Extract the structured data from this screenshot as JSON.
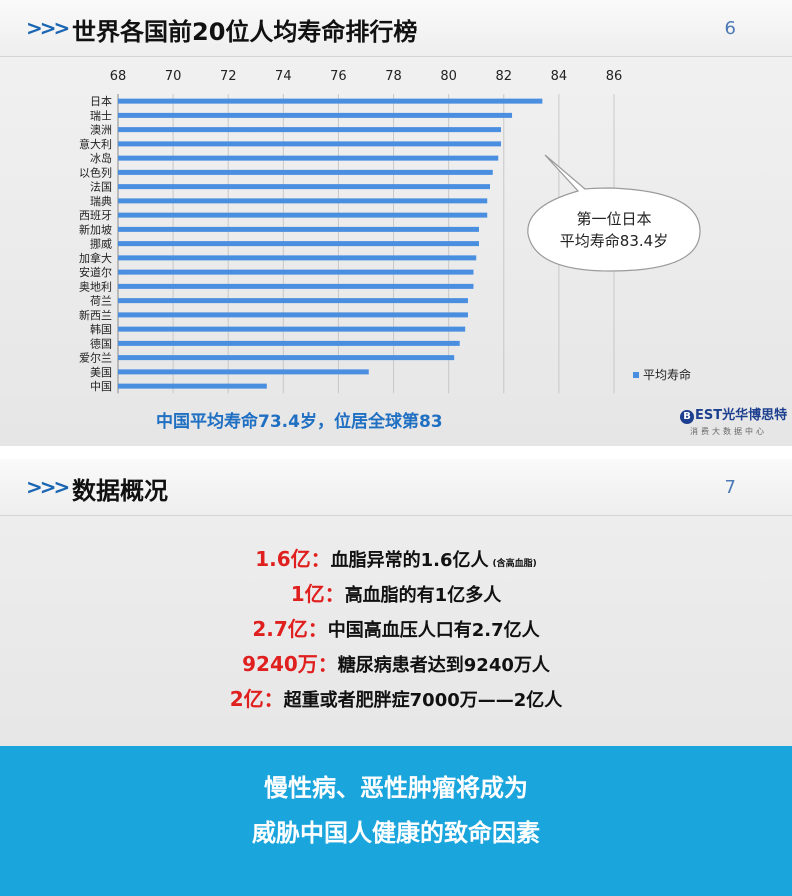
{
  "slide1": {
    "title": "世界各国前20位人均寿命排行榜",
    "page_number": "6",
    "caption": "中国平均寿命73.4岁，位居全球第83",
    "callout": [
      "第一位日本",
      "平均寿命83.4岁"
    ],
    "brand": {
      "name": "EST光华博思特",
      "sub": "消费大数据中心"
    }
  },
  "chart_data": {
    "type": "bar",
    "orientation": "horizontal",
    "categories": [
      "日本",
      "瑞士",
      "澳洲",
      "意大利",
      "冰岛",
      "以色列",
      "法国",
      "瑞典",
      "西班牙",
      "新加坡",
      "挪威",
      "加拿大",
      "安道尔",
      "奥地利",
      "荷兰",
      "新西兰",
      "韩国",
      "德国",
      "爱尔兰",
      "美国",
      "中国"
    ],
    "series": [
      {
        "name": "平均寿命",
        "values": [
          83.4,
          82.3,
          81.9,
          81.9,
          81.8,
          81.6,
          81.5,
          81.4,
          81.4,
          81.1,
          81.1,
          81.0,
          80.9,
          80.9,
          80.7,
          80.7,
          80.6,
          80.4,
          80.2,
          77.1,
          73.4
        ]
      }
    ],
    "xticks": [
      "68",
      "70",
      "72",
      "74",
      "76",
      "78",
      "80",
      "82",
      "84",
      "86"
    ],
    "xlim": [
      68,
      86
    ],
    "axis_position": "top",
    "legend": "bottom-right",
    "grid": true,
    "bar_color": "#4a8ee0"
  },
  "slide2": {
    "title": "数据概况",
    "page_number": "7",
    "stats": [
      {
        "num": "1.6亿：",
        "text": "血脂异常的1.6亿人",
        "note": "(含高血脂)"
      },
      {
        "num": "1亿：",
        "text": "高血脂的有1亿多人",
        "note": ""
      },
      {
        "num": "2.7亿：",
        "text": "中国高血压人口有2.7亿人",
        "note": ""
      },
      {
        "num": "9240万：",
        "text": "糖尿病患者达到9240万人",
        "note": ""
      },
      {
        "num": "2亿：",
        "text": "超重或者肥胖症7000万——2亿人",
        "note": ""
      }
    ],
    "banner": [
      "慢性病、恶性肿瘤将成为",
      "威胁中国人健康的致命因素"
    ]
  },
  "colors": {
    "accent": "#1b66b3",
    "highlight": "#e01f1f",
    "banner": "#1aa5dd"
  },
  "icons": {
    "chevrons": "triple-chevron-icon"
  }
}
